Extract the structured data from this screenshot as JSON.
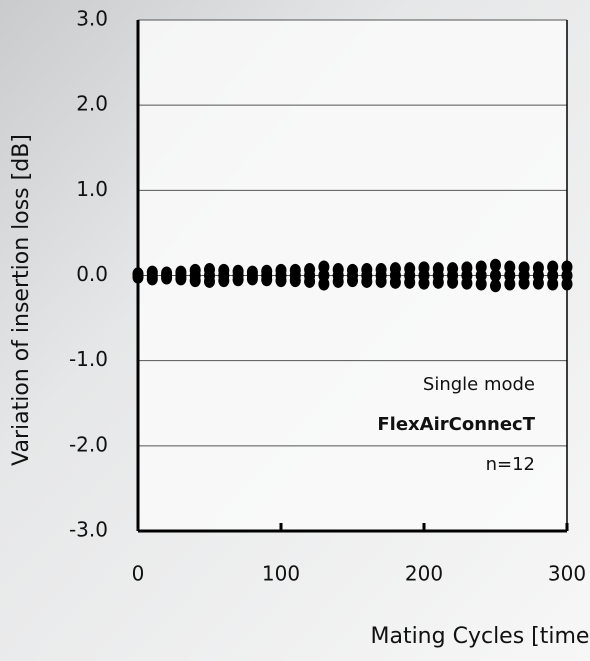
{
  "chart_data": {
    "type": "scatter",
    "xlabel": "Mating Cycles   [times]",
    "ylabel": "Variation of  insertion loss  [dB]",
    "annotations": [
      "Single mode",
      "FlexAirConnecT",
      "n=12"
    ],
    "xlim": [
      0,
      300
    ],
    "xticks": [
      0,
      100,
      200,
      300
    ],
    "ylim": [
      -3,
      3
    ],
    "yticks": [
      {
        "value": -3,
        "label": "-3.0"
      },
      {
        "value": -2,
        "label": "-2.0"
      },
      {
        "value": -1,
        "label": "-1.0"
      },
      {
        "value": 0,
        "label": "0.0"
      },
      {
        "value": 1,
        "label": "1.0"
      },
      {
        "value": 2,
        "label": "2.0"
      },
      {
        "value": 3,
        "label": "3.0"
      }
    ],
    "grid": true,
    "series": [
      {
        "color": "#000000",
        "x": [
          0,
          0,
          0,
          10,
          10,
          10,
          20,
          20,
          20,
          30,
          30,
          30,
          40,
          40,
          40,
          50,
          50,
          50,
          60,
          60,
          60,
          70,
          70,
          70,
          80,
          80,
          80,
          90,
          90,
          90,
          100,
          100,
          100,
          110,
          110,
          110,
          120,
          120,
          120,
          130,
          130,
          130,
          140,
          140,
          140,
          150,
          150,
          150,
          160,
          160,
          160,
          170,
          170,
          170,
          180,
          180,
          180,
          190,
          190,
          190,
          200,
          200,
          200,
          210,
          210,
          210,
          220,
          220,
          220,
          230,
          230,
          230,
          240,
          240,
          240,
          250,
          250,
          250,
          260,
          260,
          260,
          270,
          270,
          270,
          280,
          280,
          280,
          290,
          290,
          290,
          300,
          300,
          300
        ],
        "values": [
          -0.02,
          0,
          0.02,
          -0.04,
          0,
          0.04,
          -0.03,
          0,
          0.03,
          -0.04,
          0,
          0.04,
          -0.06,
          0,
          0.06,
          -0.07,
          0,
          0.07,
          -0.06,
          0,
          0.06,
          -0.05,
          0,
          0.05,
          -0.04,
          0,
          0.04,
          -0.05,
          0,
          0.05,
          -0.06,
          0,
          0.06,
          -0.06,
          0,
          0.06,
          -0.07,
          0,
          0.07,
          -0.1,
          0,
          0.1,
          -0.07,
          0,
          0.07,
          -0.06,
          0,
          0.06,
          -0.07,
          0,
          0.07,
          -0.07,
          0,
          0.07,
          -0.08,
          0,
          0.08,
          -0.08,
          0,
          0.08,
          -0.09,
          0,
          0.09,
          -0.08,
          0,
          0.08,
          -0.08,
          0,
          0.08,
          -0.09,
          0,
          0.09,
          -0.1,
          0,
          0.1,
          -0.12,
          0,
          0.12,
          -0.1,
          0,
          0.1,
          -0.09,
          0,
          0.09,
          -0.09,
          0,
          0.09,
          -0.1,
          0,
          0.1,
          -0.1,
          0,
          0.1
        ]
      }
    ]
  }
}
